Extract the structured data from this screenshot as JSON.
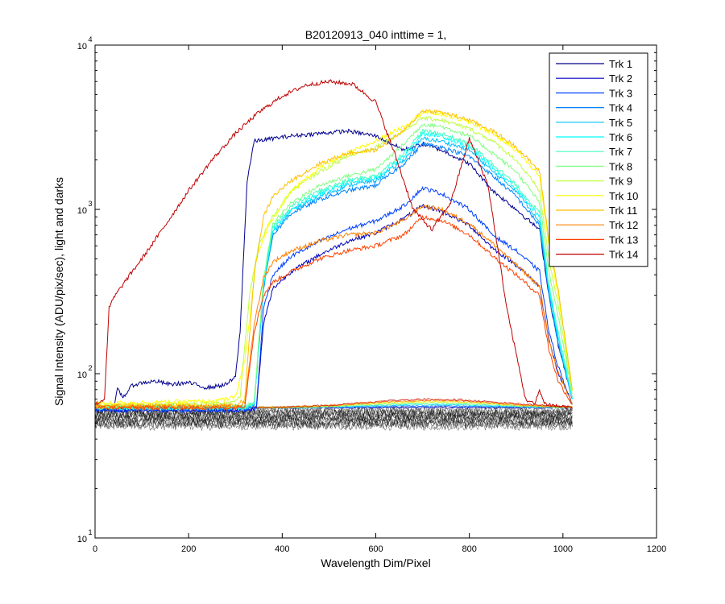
{
  "chart_data": {
    "type": "line",
    "title": "B20120913_040 inttime = 1,",
    "xlabel": "Wavelength Dim/Pixel",
    "ylabel": "Signal Intensity (ADU/pix/sec), light and darks",
    "xlim": [
      0,
      1200
    ],
    "ylim": [
      10,
      10000
    ],
    "yscale": "log",
    "x_ticks": [
      "0",
      "200",
      "400",
      "600",
      "800",
      "1000",
      "1200"
    ],
    "y_ticks": [
      {
        "base": "10",
        "exp": "1",
        "value": 10
      },
      {
        "base": "10",
        "exp": "2",
        "value": 100
      },
      {
        "base": "10",
        "exp": "3",
        "value": 1000
      },
      {
        "base": "10",
        "exp": "4",
        "value": 10000
      }
    ],
    "legend_position": "top-right",
    "series": [
      {
        "name": "Trk 1",
        "color": "#00008f",
        "x": [
          0,
          40,
          48,
          60,
          80,
          100,
          130,
          160,
          200,
          240,
          280,
          300,
          310,
          325,
          340,
          380,
          420,
          480,
          540,
          600,
          660,
          700,
          740,
          800,
          850,
          900,
          950,
          970,
          990,
          1020
        ],
        "y": [
          60,
          62,
          80,
          72,
          85,
          88,
          90,
          86,
          88,
          82,
          86,
          95,
          180,
          1500,
          2600,
          2700,
          2800,
          2900,
          3000,
          2800,
          2300,
          2500,
          2300,
          1900,
          1300,
          1000,
          750,
          300,
          150,
          70
        ]
      },
      {
        "name": "Trk 2",
        "color": "#0000c0",
        "x": [
          0,
          300,
          330,
          345,
          360,
          380,
          420,
          480,
          540,
          600,
          660,
          700,
          740,
          800,
          850,
          900,
          950,
          970,
          990,
          1020
        ],
        "y": [
          60,
          60,
          60,
          62,
          200,
          330,
          420,
          530,
          640,
          720,
          880,
          1050,
          980,
          800,
          580,
          460,
          340,
          160,
          100,
          65
        ]
      },
      {
        "name": "Trk 3",
        "color": "#0040ff",
        "x": [
          0,
          330,
          345,
          360,
          380,
          420,
          480,
          540,
          600,
          660,
          700,
          740,
          800,
          850,
          900,
          950,
          970,
          990,
          1020
        ],
        "y": [
          60,
          60,
          63,
          250,
          400,
          520,
          640,
          760,
          850,
          1050,
          1350,
          1250,
          1000,
          700,
          560,
          420,
          180,
          110,
          65
        ]
      },
      {
        "name": "Trk 4",
        "color": "#0080ff",
        "x": [
          0,
          320,
          340,
          360,
          380,
          420,
          480,
          540,
          600,
          660,
          700,
          740,
          800,
          850,
          900,
          950,
          970,
          990,
          1020
        ],
        "y": [
          62,
          62,
          64,
          330,
          700,
          950,
          1150,
          1300,
          1400,
          1900,
          2500,
          2400,
          2100,
          1600,
          1200,
          800,
          300,
          150,
          70
        ]
      },
      {
        "name": "Trk 5",
        "color": "#00bfff",
        "x": [
          0,
          320,
          340,
          360,
          380,
          420,
          480,
          540,
          600,
          660,
          700,
          740,
          800,
          850,
          900,
          950,
          970,
          990,
          1020
        ],
        "y": [
          62,
          62,
          65,
          340,
          720,
          980,
          1200,
          1400,
          1500,
          2000,
          2700,
          2600,
          2300,
          1700,
          1300,
          850,
          320,
          160,
          70
        ]
      },
      {
        "name": "Trk 6",
        "color": "#00ffff",
        "x": [
          0,
          320,
          340,
          360,
          380,
          420,
          480,
          540,
          600,
          660,
          700,
          740,
          800,
          850,
          900,
          950,
          970,
          990,
          1020
        ],
        "y": [
          62,
          62,
          66,
          350,
          750,
          1000,
          1250,
          1450,
          1550,
          2100,
          2900,
          2800,
          2400,
          1800,
          1350,
          900,
          330,
          170,
          70
        ]
      },
      {
        "name": "Trk 7",
        "color": "#40ffbf",
        "x": [
          0,
          320,
          340,
          360,
          380,
          420,
          480,
          540,
          600,
          660,
          700,
          740,
          800,
          850,
          900,
          950,
          970,
          990,
          1020
        ],
        "y": [
          62,
          62,
          66,
          360,
          780,
          1050,
          1300,
          1500,
          1600,
          2200,
          3000,
          2900,
          2500,
          1900,
          1400,
          950,
          350,
          180,
          72
        ]
      },
      {
        "name": "Trk 8",
        "color": "#80ff80",
        "x": [
          0,
          320,
          340,
          360,
          380,
          420,
          480,
          540,
          600,
          660,
          700,
          740,
          800,
          850,
          900,
          950,
          970,
          990,
          1020
        ],
        "y": [
          63,
          63,
          67,
          380,
          820,
          1100,
          1400,
          1600,
          1750,
          2500,
          3300,
          3200,
          2800,
          2200,
          1700,
          1100,
          420,
          220,
          75
        ]
      },
      {
        "name": "Trk 9",
        "color": "#bfff40",
        "x": [
          0,
          290,
          310,
          330,
          350,
          380,
          420,
          480,
          540,
          600,
          660,
          700,
          740,
          800,
          850,
          900,
          950,
          970,
          990,
          1020
        ],
        "y": [
          64,
          66,
          72,
          300,
          620,
          900,
          1300,
          1700,
          2100,
          2400,
          3000,
          3600,
          3500,
          3100,
          2600,
          2000,
          1300,
          500,
          260,
          78
        ]
      },
      {
        "name": "Trk 10",
        "color": "#ffff00",
        "x": [
          0,
          250,
          280,
          300,
          320,
          345,
          370,
          420,
          480,
          540,
          600,
          660,
          700,
          740,
          800,
          850,
          900,
          950,
          970,
          990,
          1020
        ],
        "y": [
          66,
          68,
          70,
          72,
          120,
          500,
          800,
          1300,
          1800,
          2200,
          2600,
          3200,
          3900,
          3800,
          3400,
          2900,
          2300,
          1600,
          600,
          300,
          80
        ]
      },
      {
        "name": "Trk 11",
        "color": "#ffbf00",
        "x": [
          0,
          300,
          320,
          340,
          360,
          380,
          420,
          480,
          540,
          600,
          660,
          700,
          740,
          800,
          850,
          900,
          950,
          970,
          990,
          1020
        ],
        "y": [
          64,
          64,
          70,
          400,
          900,
          1200,
          1500,
          1900,
          2200,
          2300,
          3000,
          4000,
          3900,
          3500,
          3000,
          2400,
          1700,
          650,
          320,
          80
        ]
      },
      {
        "name": "Trk 12",
        "color": "#ff8000",
        "x": [
          0,
          300,
          320,
          340,
          360,
          380,
          420,
          480,
          540,
          600,
          660,
          700,
          740,
          800,
          850,
          900,
          950,
          970,
          990,
          1020
        ],
        "y": [
          63,
          63,
          66,
          200,
          380,
          480,
          560,
          640,
          700,
          720,
          860,
          1050,
          1000,
          820,
          620,
          460,
          340,
          160,
          100,
          66
        ]
      },
      {
        "name": "Trk 13",
        "color": "#ff4000",
        "x": [
          0,
          300,
          320,
          340,
          360,
          380,
          420,
          480,
          540,
          600,
          660,
          700,
          740,
          800,
          850,
          900,
          950,
          970,
          990,
          1020
        ],
        "y": [
          62,
          62,
          64,
          180,
          300,
          360,
          420,
          500,
          560,
          600,
          700,
          900,
          860,
          700,
          520,
          400,
          300,
          140,
          90,
          65
        ]
      },
      {
        "name": "Trk 14",
        "color": "#c00000",
        "x": [
          0,
          20,
          30,
          40,
          60,
          80,
          100,
          150,
          200,
          250,
          300,
          350,
          400,
          450,
          500,
          550,
          600,
          640,
          680,
          720,
          760,
          800,
          840,
          880,
          920,
          940,
          950,
          960,
          980,
          1000,
          1020
        ],
        "y": [
          65,
          70,
          250,
          290,
          350,
          420,
          500,
          800,
          1300,
          2000,
          2900,
          3900,
          4900,
          5700,
          6000,
          5800,
          4500,
          2200,
          1000,
          750,
          1100,
          2700,
          1400,
          250,
          70,
          65,
          80,
          66,
          64,
          63,
          62
        ]
      }
    ],
    "darks": {
      "color": "#000000",
      "band_low": 48,
      "band_high": 60,
      "x_range": [
        0,
        1020
      ]
    }
  }
}
